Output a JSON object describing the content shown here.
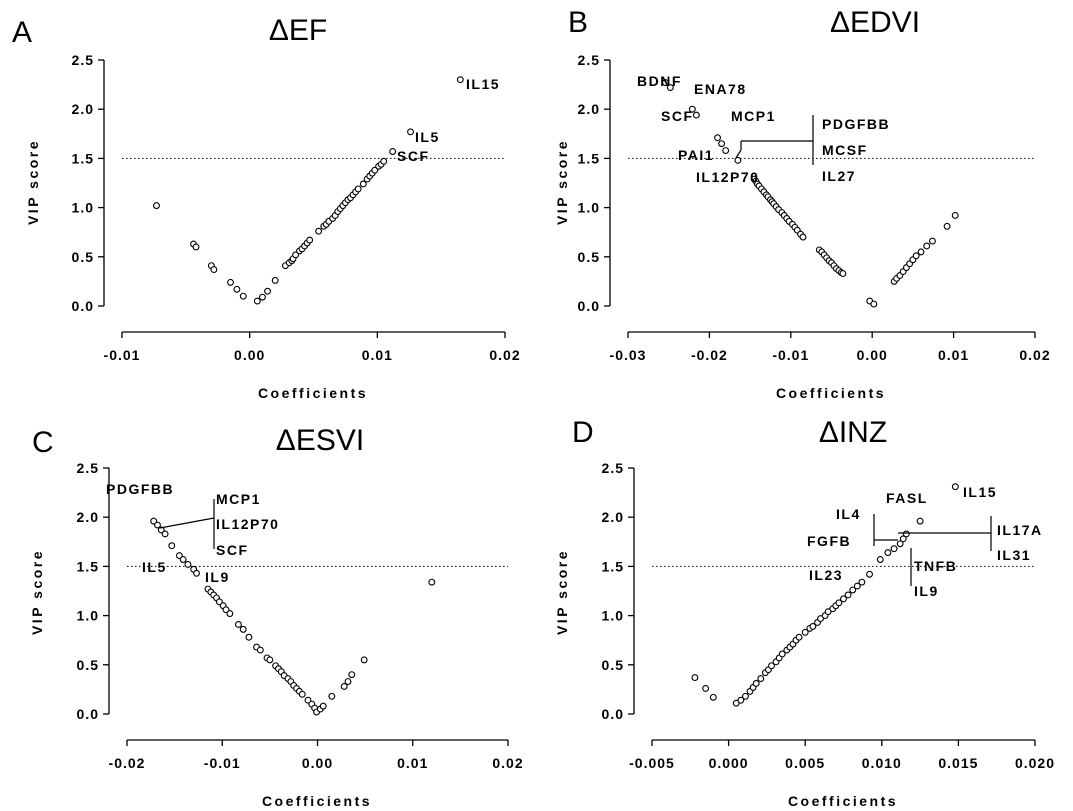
{
  "chart_data": [
    {
      "type": "scatter",
      "panel": "A",
      "title": "ΔEF",
      "xlabel": "Coefficients",
      "ylabel": "VIP score",
      "xlim": [
        -0.01,
        0.02
      ],
      "ylim": [
        0,
        2.5
      ],
      "xticks": [
        "-0.01",
        "0.00",
        "0.01",
        "0.02"
      ],
      "yticks": [
        "0.0",
        "0.5",
        "1.0",
        "1.5",
        "2.0",
        "2.5"
      ],
      "threshold": 1.5,
      "x": [
        -0.0073,
        -0.0044,
        -0.0042,
        -0.003,
        -0.0028,
        -0.0015,
        -0.001,
        -0.0005,
        0.0006,
        0.001,
        0.0014,
        0.002,
        0.0028,
        0.0031,
        0.0033,
        0.0034,
        0.0036,
        0.0039,
        0.0041,
        0.0043,
        0.0045,
        0.0047,
        0.0054,
        0.0058,
        0.006,
        0.0062,
        0.0065,
        0.0067,
        0.0069,
        0.0071,
        0.0073,
        0.0075,
        0.0077,
        0.0079,
        0.0081,
        0.0083,
        0.0085,
        0.0089,
        0.0092,
        0.0094,
        0.0096,
        0.0098,
        0.0101,
        0.0103,
        0.0105,
        0.0112,
        0.0126,
        0.0165
      ],
      "y": [
        1.02,
        0.63,
        0.6,
        0.41,
        0.37,
        0.24,
        0.17,
        0.1,
        0.05,
        0.09,
        0.15,
        0.26,
        0.41,
        0.44,
        0.46,
        0.48,
        0.52,
        0.56,
        0.58,
        0.61,
        0.64,
        0.67,
        0.76,
        0.81,
        0.83,
        0.86,
        0.89,
        0.92,
        0.96,
        0.99,
        1.02,
        1.05,
        1.08,
        1.1,
        1.13,
        1.16,
        1.19,
        1.24,
        1.29,
        1.32,
        1.35,
        1.38,
        1.42,
        1.44,
        1.47,
        1.57,
        1.77,
        2.3
      ],
      "labels": [
        {
          "text": "IL15"
        },
        {
          "text": "IL5"
        },
        {
          "text": "SCF"
        }
      ]
    },
    {
      "type": "scatter",
      "panel": "B",
      "title": "ΔEDVI",
      "xlabel": "Coefficients",
      "ylabel": "VIP score",
      "xlim": [
        -0.03,
        0.02
      ],
      "ylim": [
        0,
        2.5
      ],
      "xticks": [
        "-0.03",
        "-0.02",
        "-0.01",
        "0.00",
        "0.01",
        "0.02"
      ],
      "yticks": [
        "0.0",
        "0.5",
        "1.0",
        "1.5",
        "2.0",
        "2.5"
      ],
      "threshold": 1.5,
      "x": [
        -0.0254,
        -0.0248,
        -0.0221,
        -0.0216,
        -0.019,
        -0.0185,
        -0.018,
        -0.0165,
        -0.0145,
        -0.0143,
        -0.0141,
        -0.0139,
        -0.0136,
        -0.0133,
        -0.013,
        -0.0128,
        -0.0125,
        -0.0123,
        -0.0121,
        -0.0118,
        -0.0115,
        -0.0111,
        -0.0108,
        -0.0105,
        -0.0102,
        -0.0098,
        -0.0095,
        -0.0092,
        -0.0088,
        -0.0085,
        -0.0065,
        -0.0062,
        -0.0059,
        -0.0056,
        -0.0053,
        -0.005,
        -0.0047,
        -0.0044,
        -0.0041,
        -0.0038,
        -0.0036,
        -0.0003,
        0.0002,
        0.0027,
        0.003,
        0.0034,
        0.0038,
        0.0042,
        0.0046,
        0.005,
        0.0054,
        0.006,
        0.0067,
        0.0074,
        0.0092,
        0.0102
      ],
      "y": [
        2.27,
        2.22,
        2.0,
        1.94,
        1.71,
        1.65,
        1.58,
        1.48,
        1.29,
        1.27,
        1.24,
        1.22,
        1.19,
        1.16,
        1.13,
        1.11,
        1.08,
        1.06,
        1.04,
        1.01,
        0.98,
        0.95,
        0.92,
        0.89,
        0.86,
        0.83,
        0.8,
        0.77,
        0.73,
        0.7,
        0.57,
        0.55,
        0.52,
        0.49,
        0.46,
        0.44,
        0.41,
        0.38,
        0.36,
        0.34,
        0.33,
        0.05,
        0.02,
        0.25,
        0.28,
        0.31,
        0.35,
        0.39,
        0.43,
        0.47,
        0.51,
        0.55,
        0.61,
        0.66,
        0.81,
        0.92
      ],
      "labels": [
        {
          "text": "BDNF"
        },
        {
          "text": "ENA78"
        },
        {
          "text": "SCF"
        },
        {
          "text": "MCP1"
        },
        {
          "text": "PDGFBB"
        },
        {
          "text": "PAI1"
        },
        {
          "text": "MCSF"
        },
        {
          "text": "IL12P70"
        },
        {
          "text": "IL27"
        }
      ]
    },
    {
      "type": "scatter",
      "panel": "C",
      "title": "ΔESVI",
      "xlabel": "Coefficients",
      "ylabel": "VIP score",
      "xlim": [
        -0.02,
        0.02
      ],
      "ylim": [
        0,
        2.5
      ],
      "xticks": [
        "-0.02",
        "-0.01",
        "0.00",
        "0.01",
        "0.02"
      ],
      "yticks": [
        "0.0",
        "0.5",
        "1.0",
        "1.5",
        "2.0",
        "2.5"
      ],
      "threshold": 1.5,
      "x": [
        -0.0172,
        -0.0168,
        -0.0164,
        -0.016,
        -0.0153,
        -0.0145,
        -0.0141,
        -0.0136,
        -0.013,
        -0.0127,
        -0.0115,
        -0.0112,
        -0.0109,
        -0.0106,
        -0.0103,
        -0.0099,
        -0.0096,
        -0.0092,
        -0.0083,
        -0.0078,
        -0.0072,
        -0.0064,
        -0.006,
        -0.0053,
        -0.005,
        -0.0044,
        -0.0041,
        -0.0038,
        -0.0035,
        -0.0031,
        -0.0028,
        -0.0025,
        -0.0022,
        -0.0019,
        -0.0016,
        -0.001,
        -0.0006,
        -0.0003,
        -0.0001,
        0.0003,
        0.0006,
        0.0015,
        0.0028,
        0.0032,
        0.0036,
        0.0049,
        0.012
      ],
      "y": [
        1.96,
        1.92,
        1.87,
        1.83,
        1.71,
        1.61,
        1.57,
        1.52,
        1.47,
        1.43,
        1.27,
        1.24,
        1.21,
        1.18,
        1.14,
        1.1,
        1.06,
        1.02,
        0.91,
        0.86,
        0.78,
        0.68,
        0.65,
        0.57,
        0.55,
        0.49,
        0.46,
        0.43,
        0.39,
        0.36,
        0.33,
        0.29,
        0.26,
        0.23,
        0.2,
        0.14,
        0.1,
        0.06,
        0.02,
        0.05,
        0.08,
        0.18,
        0.28,
        0.33,
        0.4,
        0.55,
        1.34
      ],
      "labels": [
        {
          "text": "PDGFBB"
        },
        {
          "text": "MCP1"
        },
        {
          "text": "IL12P70"
        },
        {
          "text": "SCF"
        },
        {
          "text": "IL5"
        },
        {
          "text": "IL9"
        }
      ]
    },
    {
      "type": "scatter",
      "panel": "D",
      "title": "ΔINZ",
      "xlabel": "Coefficients",
      "ylabel": "VIP score",
      "xlim": [
        -0.005,
        0.02
      ],
      "ylim": [
        0,
        2.5
      ],
      "xticks": [
        "-0.005",
        "0.000",
        "0.005",
        "0.010",
        "0.015",
        "0.020"
      ],
      "yticks": [
        "0.0",
        "0.5",
        "1.0",
        "1.5",
        "2.0",
        "2.5"
      ],
      "threshold": 1.5,
      "x": [
        -0.0022,
        -0.0015,
        -0.001,
        0.0005,
        0.0008,
        0.0011,
        0.0014,
        0.0016,
        0.0018,
        0.0021,
        0.0024,
        0.0026,
        0.0028,
        0.0031,
        0.0033,
        0.0035,
        0.0038,
        0.004,
        0.0042,
        0.0044,
        0.0046,
        0.005,
        0.0053,
        0.0055,
        0.0058,
        0.006,
        0.0063,
        0.0065,
        0.0068,
        0.007,
        0.0072,
        0.0075,
        0.0078,
        0.0081,
        0.0084,
        0.0087,
        0.0092,
        0.0099,
        0.0104,
        0.0108,
        0.0112,
        0.0114,
        0.0116,
        0.0125,
        0.0148
      ],
      "y": [
        0.37,
        0.26,
        0.17,
        0.11,
        0.14,
        0.18,
        0.23,
        0.27,
        0.31,
        0.36,
        0.42,
        0.45,
        0.49,
        0.53,
        0.57,
        0.61,
        0.65,
        0.68,
        0.71,
        0.75,
        0.78,
        0.83,
        0.87,
        0.89,
        0.93,
        0.97,
        1.0,
        1.04,
        1.07,
        1.1,
        1.13,
        1.17,
        1.21,
        1.26,
        1.3,
        1.34,
        1.42,
        1.57,
        1.64,
        1.68,
        1.73,
        1.78,
        1.83,
        1.96,
        2.31
      ],
      "labels": [
        {
          "text": "IL15"
        },
        {
          "text": "FASL"
        },
        {
          "text": "IL4"
        },
        {
          "text": "IL17A"
        },
        {
          "text": "FGFB"
        },
        {
          "text": "TNFB"
        },
        {
          "text": "IL31"
        },
        {
          "text": "IL23"
        },
        {
          "text": "IL9"
        }
      ]
    }
  ]
}
